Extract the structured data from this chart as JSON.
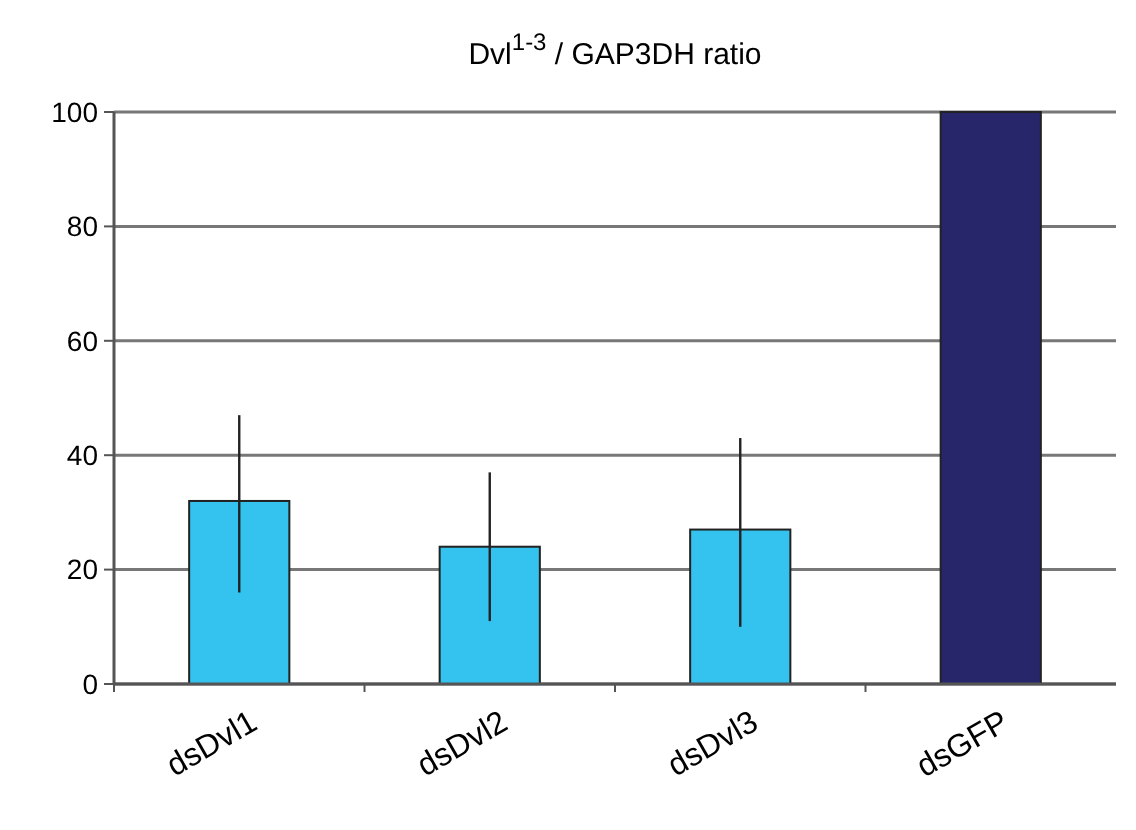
{
  "chart_data": {
    "type": "bar",
    "title": "Dvl$^{1-3}$ / GAP3DH ratio",
    "categories": [
      "dsDvl1",
      "dsDvl2",
      "dsDvl3",
      "dsGFP"
    ],
    "values": [
      32,
      24,
      27,
      100
    ],
    "colors": [
      "#33c3ee",
      "#33c3ee",
      "#33c3ee",
      "#27266b"
    ],
    "errors": [
      [
        16,
        47
      ],
      [
        11,
        37
      ],
      [
        10,
        43
      ],
      null
    ],
    "ylim": [
      0,
      100
    ],
    "yticks": [
      0,
      20,
      40,
      60,
      80,
      100
    ],
    "grid": "y"
  }
}
